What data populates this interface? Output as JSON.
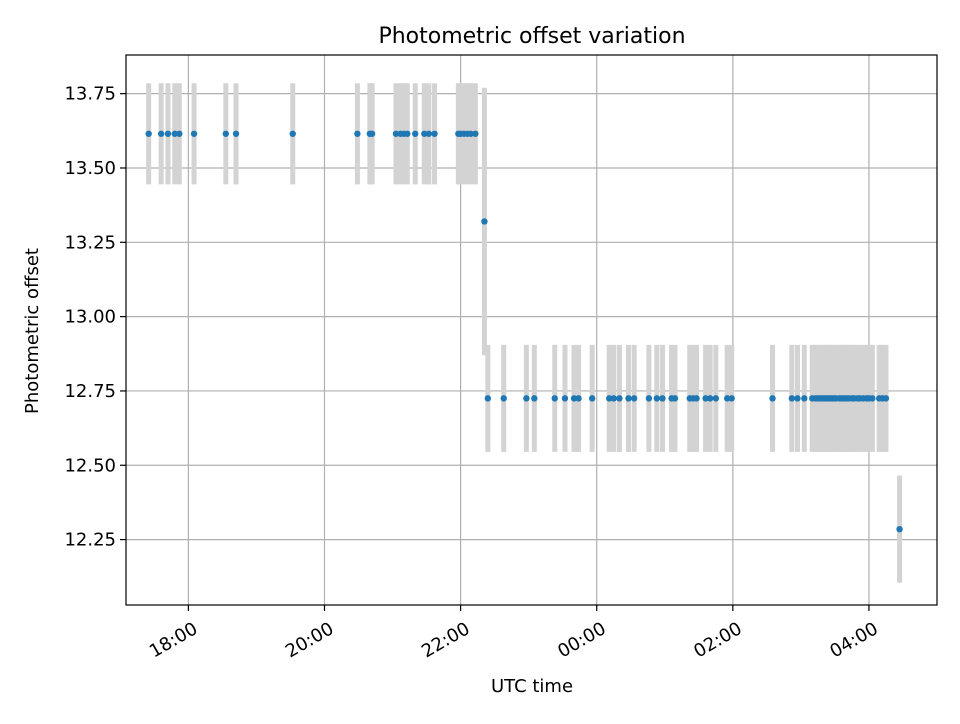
{
  "chart_data": {
    "type": "scatter",
    "title": "Photometric offset variation",
    "xlabel": "UTC time",
    "ylabel": "Photometric offset",
    "x_axis": "time",
    "xlim": [
      "17:05",
      "05:00"
    ],
    "ylim": [
      12.03,
      13.88
    ],
    "xticks": [
      {
        "time": "18:00",
        "label": "18:00"
      },
      {
        "time": "20:00",
        "label": "20:00"
      },
      {
        "time": "22:00",
        "label": "22:00"
      },
      {
        "time": "00:00",
        "label": "00:00"
      },
      {
        "time": "02:00",
        "label": "02:00"
      },
      {
        "time": "04:00",
        "label": "04:00"
      }
    ],
    "yticks": [
      {
        "value": 12.25,
        "label": "12.25"
      },
      {
        "value": 12.5,
        "label": "12.50"
      },
      {
        "value": 12.75,
        "label": "12.75"
      },
      {
        "value": 13.0,
        "label": "13.00"
      },
      {
        "value": 13.25,
        "label": "13.25"
      },
      {
        "value": 13.5,
        "label": "13.50"
      },
      {
        "value": 13.75,
        "label": "13.75"
      }
    ],
    "grid": true,
    "x_tick_rotation": 30,
    "colors": {
      "marker": "#1f77b4",
      "errorbar": "#d3d3d3",
      "grid": "#b0b0b0"
    },
    "series": [
      {
        "error": 0.17,
        "points": [
          {
            "x": "17:25",
            "y": 13.615
          },
          {
            "x": "17:36",
            "y": 13.615
          },
          {
            "x": "17:42",
            "y": 13.615
          },
          {
            "x": "17:48",
            "y": 13.615
          },
          {
            "x": "17:52",
            "y": 13.615
          },
          {
            "x": "18:05",
            "y": 13.615
          },
          {
            "x": "18:33",
            "y": 13.615
          },
          {
            "x": "18:42",
            "y": 13.615
          },
          {
            "x": "19:32",
            "y": 13.615
          },
          {
            "x": "20:29",
            "y": 13.615
          },
          {
            "x": "20:40",
            "y": 13.615
          },
          {
            "x": "20:42",
            "y": 13.615
          },
          {
            "x": "21:03",
            "y": 13.615
          },
          {
            "x": "21:07",
            "y": 13.615
          },
          {
            "x": "21:10",
            "y": 13.615
          },
          {
            "x": "21:13",
            "y": 13.615
          },
          {
            "x": "21:20",
            "y": 13.615
          },
          {
            "x": "21:28",
            "y": 13.615
          },
          {
            "x": "21:32",
            "y": 13.615
          },
          {
            "x": "21:37",
            "y": 13.615
          },
          {
            "x": "21:58",
            "y": 13.615
          },
          {
            "x": "22:00",
            "y": 13.615
          },
          {
            "x": "22:03",
            "y": 13.615
          },
          {
            "x": "22:06",
            "y": 13.615
          },
          {
            "x": "22:09",
            "y": 13.615
          },
          {
            "x": "22:13",
            "y": 13.615
          }
        ]
      },
      {
        "error": 0.45,
        "points": [
          {
            "x": "22:21",
            "y": 13.32
          }
        ]
      },
      {
        "error": 0.18,
        "points": [
          {
            "x": "22:24",
            "y": 12.725
          },
          {
            "x": "22:38",
            "y": 12.725
          },
          {
            "x": "22:58",
            "y": 12.725
          },
          {
            "x": "23:05",
            "y": 12.725
          },
          {
            "x": "23:23",
            "y": 12.725
          },
          {
            "x": "23:32",
            "y": 12.725
          },
          {
            "x": "23:40",
            "y": 12.725
          },
          {
            "x": "23:44",
            "y": 12.725
          },
          {
            "x": "23:56",
            "y": 12.725
          },
          {
            "x": "00:11",
            "y": 12.725
          },
          {
            "x": "00:15",
            "y": 12.725
          },
          {
            "x": "00:20",
            "y": 12.725
          },
          {
            "x": "00:28",
            "y": 12.725
          },
          {
            "x": "00:33",
            "y": 12.725
          },
          {
            "x": "00:46",
            "y": 12.725
          },
          {
            "x": "00:53",
            "y": 12.725
          },
          {
            "x": "00:58",
            "y": 12.725
          },
          {
            "x": "01:06",
            "y": 12.725
          },
          {
            "x": "01:09",
            "y": 12.725
          },
          {
            "x": "01:22",
            "y": 12.725
          },
          {
            "x": "01:25",
            "y": 12.725
          },
          {
            "x": "01:28",
            "y": 12.725
          },
          {
            "x": "01:36",
            "y": 12.725
          },
          {
            "x": "01:40",
            "y": 12.725
          },
          {
            "x": "01:45",
            "y": 12.725
          },
          {
            "x": "01:55",
            "y": 12.725
          },
          {
            "x": "01:59",
            "y": 12.725
          },
          {
            "x": "02:35",
            "y": 12.725
          },
          {
            "x": "02:52",
            "y": 12.725
          },
          {
            "x": "02:57",
            "y": 12.725
          },
          {
            "x": "03:03",
            "y": 12.725
          },
          {
            "x": "03:10",
            "y": 12.725
          },
          {
            "x": "03:13",
            "y": 12.725
          },
          {
            "x": "03:15",
            "y": 12.725
          },
          {
            "x": "03:17",
            "y": 12.725
          },
          {
            "x": "03:19",
            "y": 12.725
          },
          {
            "x": "03:21",
            "y": 12.725
          },
          {
            "x": "03:23",
            "y": 12.725
          },
          {
            "x": "03:25",
            "y": 12.725
          },
          {
            "x": "03:27",
            "y": 12.725
          },
          {
            "x": "03:29",
            "y": 12.725
          },
          {
            "x": "03:31",
            "y": 12.725
          },
          {
            "x": "03:34",
            "y": 12.725
          },
          {
            "x": "03:36",
            "y": 12.725
          },
          {
            "x": "03:38",
            "y": 12.725
          },
          {
            "x": "03:40",
            "y": 12.725
          },
          {
            "x": "03:42",
            "y": 12.725
          },
          {
            "x": "03:45",
            "y": 12.725
          },
          {
            "x": "03:47",
            "y": 12.725
          },
          {
            "x": "03:50",
            "y": 12.725
          },
          {
            "x": "03:52",
            "y": 12.725
          },
          {
            "x": "03:55",
            "y": 12.725
          },
          {
            "x": "03:58",
            "y": 12.725
          },
          {
            "x": "04:00",
            "y": 12.725
          },
          {
            "x": "04:03",
            "y": 12.725
          },
          {
            "x": "04:09",
            "y": 12.725
          },
          {
            "x": "04:12",
            "y": 12.725
          },
          {
            "x": "04:15",
            "y": 12.725
          }
        ]
      },
      {
        "error": 0.18,
        "points": [
          {
            "x": "04:27",
            "y": 12.285
          }
        ]
      }
    ]
  }
}
